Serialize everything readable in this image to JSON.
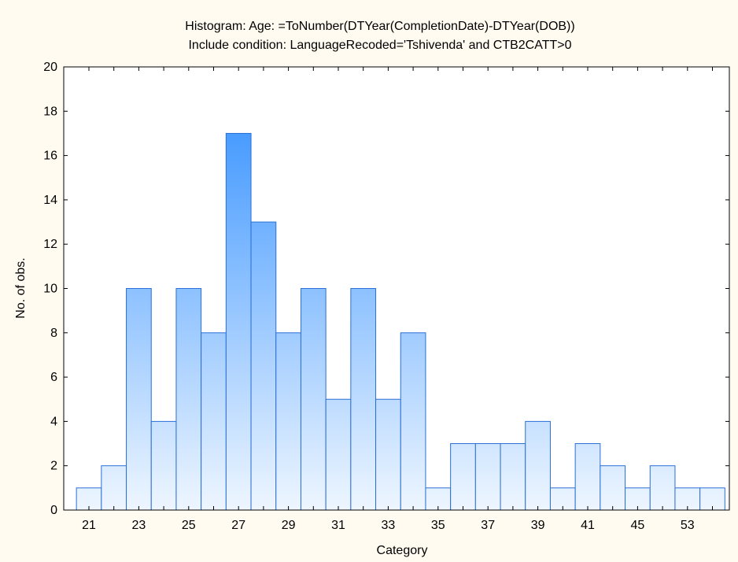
{
  "chart_data": {
    "type": "bar",
    "title": "Histogram: Age: =ToNumber(DTYear(CompletionDate)-DTYear(DOB))",
    "subtitle": "Include condition: LanguageRecoded='Tshivenda' and CTB2CATT>0",
    "xlabel": "Category",
    "ylabel": "No. of obs.",
    "ylim": [
      0,
      20
    ],
    "yticks": [
      0,
      2,
      4,
      6,
      8,
      10,
      12,
      14,
      16,
      18,
      20
    ],
    "categories": [
      "21",
      "22",
      "23",
      "24",
      "25",
      "26",
      "27",
      "28",
      "29",
      "30",
      "31",
      "32",
      "33",
      "34",
      "35",
      "36",
      "37",
      "38",
      "39",
      "40",
      "41",
      "42",
      "45",
      "46",
      "53",
      "54"
    ],
    "tick_labels": [
      "21",
      "23",
      "25",
      "27",
      "29",
      "31",
      "33",
      "35",
      "37",
      "39",
      "41",
      "45",
      "53"
    ],
    "values": [
      1,
      2,
      10,
      4,
      10,
      8,
      17,
      13,
      8,
      10,
      5,
      10,
      5,
      8,
      1,
      3,
      3,
      3,
      4,
      1,
      3,
      2,
      1,
      2,
      1,
      1
    ],
    "grid": false,
    "legend": false,
    "colors": {
      "bar_top": "#2b8cff",
      "bar_bottom": "#eef6ff",
      "bar_edge": "#2a6fd6",
      "background": "#fffbf0"
    }
  }
}
